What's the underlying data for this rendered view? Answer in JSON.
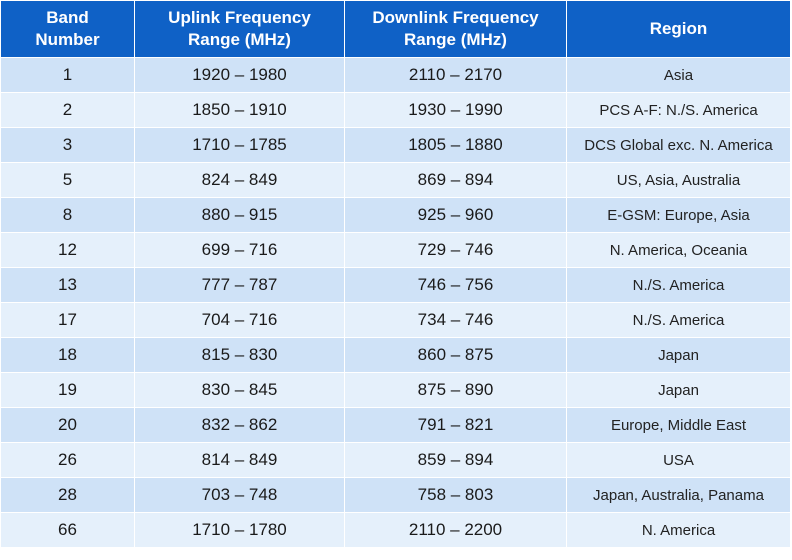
{
  "table": {
    "headers": {
      "band": [
        "Band",
        "Number"
      ],
      "uplink": [
        "Uplink Frequency",
        "Range (MHz)"
      ],
      "downlink": [
        "Downlink Frequency",
        "Range (MHz)"
      ],
      "region": [
        "Region"
      ]
    },
    "rows": [
      {
        "band": "1",
        "uplink": "1920 – 1980",
        "downlink": "2110 – 2170",
        "region": "Asia"
      },
      {
        "band": "2",
        "uplink": "1850 – 1910",
        "downlink": "1930 – 1990",
        "region": "PCS A-F: N./S. America"
      },
      {
        "band": "3",
        "uplink": "1710 – 1785",
        "downlink": "1805 – 1880",
        "region": "DCS Global exc. N. America"
      },
      {
        "band": "5",
        "uplink": "824 – 849",
        "downlink": "869 – 894",
        "region": "US, Asia, Australia"
      },
      {
        "band": "8",
        "uplink": "880 – 915",
        "downlink": "925 – 960",
        "region": "E-GSM: Europe, Asia"
      },
      {
        "band": "12",
        "uplink": "699 – 716",
        "downlink": "729 – 746",
        "region": "N. America, Oceania"
      },
      {
        "band": "13",
        "uplink": "777 – 787",
        "downlink": "746 – 756",
        "region": "N./S. America"
      },
      {
        "band": "17",
        "uplink": "704 – 716",
        "downlink": "734 – 746",
        "region": "N./S. America"
      },
      {
        "band": "18",
        "uplink": "815 – 830",
        "downlink": "860 – 875",
        "region": "Japan"
      },
      {
        "band": "19",
        "uplink": "830 – 845",
        "downlink": "875 – 890",
        "region": "Japan"
      },
      {
        "band": "20",
        "uplink": "832 – 862",
        "downlink": "791 – 821",
        "region": "Europe, Middle East"
      },
      {
        "band": "26",
        "uplink": "814 – 849",
        "downlink": "859 – 894",
        "region": "USA"
      },
      {
        "band": "28",
        "uplink": "703 – 748",
        "downlink": "758 – 803",
        "region": "Japan, Australia, Panama"
      },
      {
        "band": "66",
        "uplink": "1710 – 1780",
        "downlink": "2110 – 2200",
        "region": "N. America"
      }
    ]
  },
  "colors": {
    "header_bg": "#0f61c6",
    "header_text": "#ffffff",
    "row_odd_bg": "#cfe2f7",
    "row_even_bg": "#e5f0fb"
  }
}
